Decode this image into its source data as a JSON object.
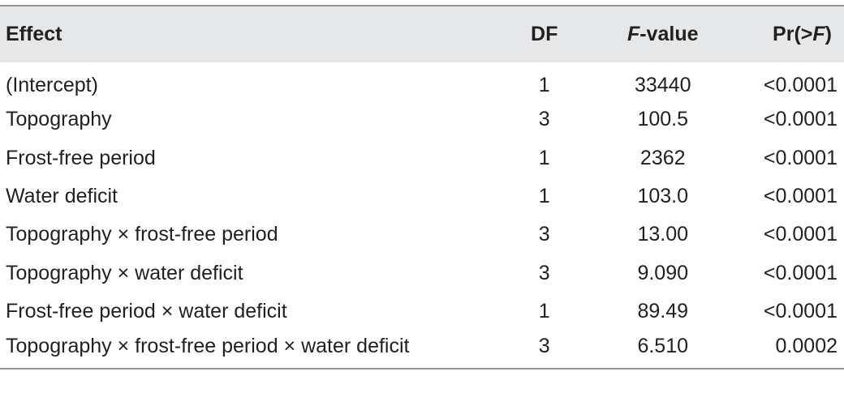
{
  "table": {
    "headers": {
      "effect": "Effect",
      "df": "DF",
      "f_value_italic": "F",
      "f_value_rest": "-value",
      "pr_prefix": "Pr(>",
      "pr_italic": "F",
      "pr_suffix": ")"
    },
    "rows": [
      {
        "effect": "(Intercept)",
        "df": "1",
        "f_value": "33440",
        "pr": "<0.0001"
      },
      {
        "effect": "Topography",
        "df": "3",
        "f_value": "100.5",
        "pr": "<0.0001"
      },
      {
        "effect": "Frost-free period",
        "df": "1",
        "f_value": "2362",
        "pr": "<0.0001"
      },
      {
        "effect": "Water deficit",
        "df": "1",
        "f_value": "103.0",
        "pr": "<0.0001"
      },
      {
        "effect": "Topography × frost-free period",
        "df": "3",
        "f_value": "13.00",
        "pr": "<0.0001"
      },
      {
        "effect": "Topography × water deficit",
        "df": "3",
        "f_value": "9.090",
        "pr": "<0.0001"
      },
      {
        "effect": "Frost-free period × water deficit",
        "df": "1",
        "f_value": "89.49",
        "pr": "<0.0001"
      },
      {
        "effect": "Topography × frost-free period × water deficit",
        "df": "3",
        "f_value": "6.510",
        "pr": "0.0002"
      }
    ]
  }
}
